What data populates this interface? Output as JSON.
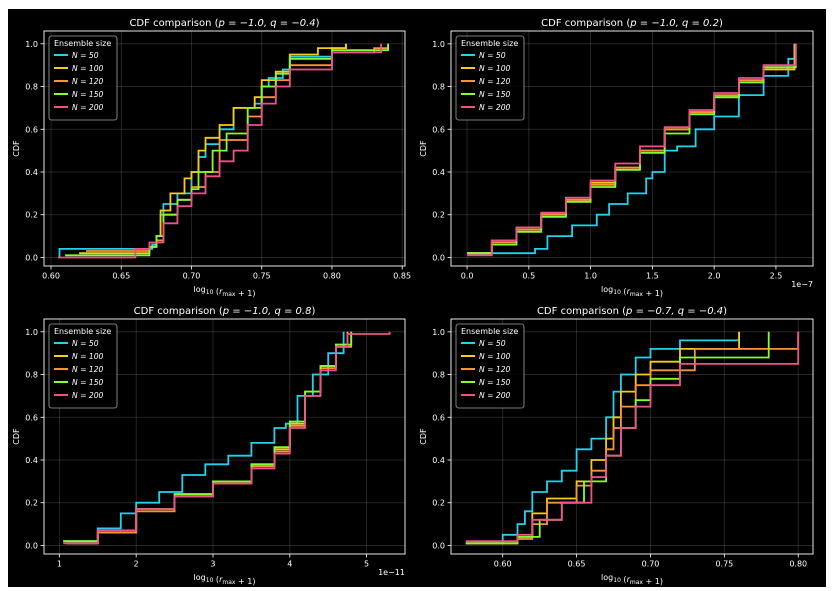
{
  "chart_data": [
    {
      "type": "line",
      "title_pre": "CDF comparison (",
      "title_pq": "p = −1.0, q = −0.4",
      "title_post": ")",
      "xlabel": "log10 (r_max + 1)",
      "ylabel": "CDF",
      "xlim": [
        0.595,
        0.852
      ],
      "ylim": [
        -0.04,
        1.06
      ],
      "xticks": [
        0.6,
        0.65,
        0.7,
        0.75,
        0.8,
        0.85
      ],
      "xtick_labels": [
        "0.60",
        "0.65",
        "0.70",
        "0.75",
        "0.80",
        "0.85"
      ],
      "yticks": [
        0.0,
        0.2,
        0.4,
        0.6,
        0.8,
        1.0
      ],
      "ytick_labels": [
        "0.0",
        "0.2",
        "0.4",
        "0.6",
        "0.8",
        "1.0"
      ],
      "offset_label": "",
      "legend_title": "Ensemble size",
      "series": [
        {
          "name": "N = 50",
          "color": "#22d3ee",
          "x": [
            0.606,
            0.606,
            0.672,
            0.675,
            0.678,
            0.68,
            0.69,
            0.7,
            0.705,
            0.71,
            0.72,
            0.73,
            0.745,
            0.75,
            0.755,
            0.765,
            0.77,
            0.8,
            0.81
          ],
          "y": [
            0.0,
            0.04,
            0.06,
            0.1,
            0.2,
            0.25,
            0.3,
            0.4,
            0.47,
            0.53,
            0.6,
            0.7,
            0.72,
            0.8,
            0.84,
            0.88,
            0.94,
            0.98,
            1.0
          ]
        },
        {
          "name": "N = 100",
          "color": "#facc15",
          "x": [
            0.62,
            0.67,
            0.675,
            0.678,
            0.685,
            0.695,
            0.7,
            0.705,
            0.71,
            0.72,
            0.73,
            0.745,
            0.75,
            0.76,
            0.77,
            0.79,
            0.81
          ],
          "y": [
            0.02,
            0.05,
            0.1,
            0.22,
            0.3,
            0.37,
            0.4,
            0.5,
            0.56,
            0.62,
            0.7,
            0.75,
            0.83,
            0.87,
            0.95,
            0.98,
            1.0
          ]
        },
        {
          "name": "N = 120",
          "color": "#fb923c",
          "x": [
            0.625,
            0.67,
            0.675,
            0.68,
            0.69,
            0.7,
            0.71,
            0.72,
            0.74,
            0.75,
            0.76,
            0.77,
            0.8,
            0.83,
            0.84
          ],
          "y": [
            0.03,
            0.05,
            0.08,
            0.2,
            0.27,
            0.33,
            0.4,
            0.55,
            0.66,
            0.75,
            0.83,
            0.9,
            0.96,
            0.98,
            1.0
          ]
        },
        {
          "name": "N = 150",
          "color": "#84ff2e",
          "x": [
            0.61,
            0.67,
            0.675,
            0.68,
            0.69,
            0.7,
            0.705,
            0.715,
            0.725,
            0.74,
            0.75,
            0.76,
            0.77,
            0.8,
            0.84
          ],
          "y": [
            0.01,
            0.05,
            0.1,
            0.2,
            0.27,
            0.32,
            0.4,
            0.5,
            0.58,
            0.7,
            0.8,
            0.86,
            0.93,
            0.97,
            1.0
          ]
        },
        {
          "name": "N = 200",
          "color": "#f0508c",
          "x": [
            0.605,
            0.66,
            0.67,
            0.68,
            0.69,
            0.7,
            0.71,
            0.72,
            0.73,
            0.74,
            0.75,
            0.76,
            0.77,
            0.8,
            0.835
          ],
          "y": [
            0.0,
            0.04,
            0.07,
            0.16,
            0.24,
            0.3,
            0.38,
            0.45,
            0.5,
            0.62,
            0.72,
            0.8,
            0.88,
            0.96,
            1.0
          ]
        }
      ]
    },
    {
      "type": "line",
      "title_pre": "CDF comparison (",
      "title_pq": "p = −1.0, q = 0.2",
      "title_post": ")",
      "xlabel": "log10 (r_max + 1)",
      "ylabel": "CDF",
      "xlim": [
        -0.13,
        2.8
      ],
      "ylim": [
        -0.04,
        1.06
      ],
      "xticks": [
        0.0,
        0.5,
        1.0,
        1.5,
        2.0,
        2.5
      ],
      "xtick_labels": [
        "0.0",
        "0.5",
        "1.0",
        "1.5",
        "2.0",
        "2.5"
      ],
      "yticks": [
        0.0,
        0.2,
        0.4,
        0.6,
        0.8,
        1.0
      ],
      "ytick_labels": [
        "0.0",
        "0.2",
        "0.4",
        "0.6",
        "0.8",
        "1.0"
      ],
      "offset_label": "1e−7",
      "legend_title": "Ensemble size",
      "series": [
        {
          "name": "N = 50",
          "color": "#22d3ee",
          "x": [
            0.0,
            0.55,
            0.65,
            0.85,
            1.05,
            1.15,
            1.3,
            1.45,
            1.5,
            1.6,
            1.7,
            1.85,
            2.0,
            2.2,
            2.4,
            2.6,
            2.65
          ],
          "y": [
            0.02,
            0.04,
            0.1,
            0.15,
            0.2,
            0.25,
            0.3,
            0.37,
            0.4,
            0.5,
            0.52,
            0.6,
            0.66,
            0.76,
            0.85,
            0.93,
            1.0
          ]
        },
        {
          "name": "N = 100",
          "color": "#facc15",
          "x": [
            0.0,
            0.2,
            0.4,
            0.6,
            0.8,
            1.0,
            1.2,
            1.4,
            1.6,
            1.8,
            2.0,
            2.2,
            2.4,
            2.65
          ],
          "y": [
            0.02,
            0.08,
            0.14,
            0.2,
            0.27,
            0.35,
            0.42,
            0.5,
            0.6,
            0.68,
            0.75,
            0.82,
            0.88,
            1.0
          ]
        },
        {
          "name": "N = 120",
          "color": "#fb923c",
          "x": [
            0.0,
            0.2,
            0.4,
            0.6,
            0.8,
            1.0,
            1.2,
            1.4,
            1.6,
            1.8,
            2.0,
            2.2,
            2.4,
            2.66
          ],
          "y": [
            0.02,
            0.07,
            0.13,
            0.2,
            0.27,
            0.34,
            0.42,
            0.5,
            0.6,
            0.68,
            0.76,
            0.83,
            0.89,
            1.0
          ]
        },
        {
          "name": "N = 150",
          "color": "#84ff2e",
          "x": [
            0.0,
            0.2,
            0.4,
            0.6,
            0.8,
            1.0,
            1.2,
            1.4,
            1.6,
            1.8,
            2.0,
            2.2,
            2.4,
            2.66
          ],
          "y": [
            0.02,
            0.06,
            0.12,
            0.19,
            0.26,
            0.33,
            0.41,
            0.49,
            0.58,
            0.67,
            0.75,
            0.82,
            0.89,
            1.0
          ]
        },
        {
          "name": "N = 200",
          "color": "#f0508c",
          "x": [
            0.0,
            0.2,
            0.4,
            0.6,
            0.8,
            1.0,
            1.2,
            1.4,
            1.6,
            1.8,
            2.0,
            2.2,
            2.4,
            2.66
          ],
          "y": [
            0.01,
            0.08,
            0.14,
            0.21,
            0.28,
            0.36,
            0.44,
            0.52,
            0.61,
            0.69,
            0.77,
            0.84,
            0.9,
            1.0
          ]
        }
      ]
    },
    {
      "type": "line",
      "title_pre": "CDF comparison (",
      "title_pq": "p = −1.0, q = 0.8",
      "title_post": ")",
      "xlabel": "log10 (r_max + 1)",
      "ylabel": "CDF",
      "xlim": [
        0.8,
        5.5
      ],
      "ylim": [
        -0.04,
        1.06
      ],
      "xticks": [
        1,
        2,
        3,
        4,
        5
      ],
      "xtick_labels": [
        "1",
        "2",
        "3",
        "4",
        "5"
      ],
      "yticks": [
        0.0,
        0.2,
        0.4,
        0.6,
        0.8,
        1.0
      ],
      "ytick_labels": [
        "0.0",
        "0.2",
        "0.4",
        "0.6",
        "0.8",
        "1.0"
      ],
      "offset_label": "1e−11",
      "legend_title": "Ensemble size",
      "series": [
        {
          "name": "N = 50",
          "color": "#22d3ee",
          "x": [
            1.05,
            1.5,
            1.8,
            2.0,
            2.3,
            2.6,
            2.9,
            3.2,
            3.5,
            3.8,
            3.95,
            4.1,
            4.3,
            4.5,
            4.7
          ],
          "y": [
            0.02,
            0.08,
            0.15,
            0.2,
            0.25,
            0.33,
            0.38,
            0.42,
            0.48,
            0.55,
            0.57,
            0.7,
            0.8,
            0.9,
            1.0
          ]
        },
        {
          "name": "N = 100",
          "color": "#facc15",
          "x": [
            1.1,
            1.5,
            2.0,
            2.5,
            3.0,
            3.5,
            3.8,
            4.0,
            4.2,
            4.4,
            4.6,
            4.75
          ],
          "y": [
            0.01,
            0.07,
            0.17,
            0.24,
            0.3,
            0.38,
            0.45,
            0.57,
            0.72,
            0.84,
            0.94,
            1.0
          ]
        },
        {
          "name": "N = 120",
          "color": "#fb923c",
          "x": [
            1.1,
            1.5,
            2.0,
            2.5,
            3.0,
            3.5,
            3.8,
            4.0,
            4.2,
            4.4,
            4.6,
            4.8
          ],
          "y": [
            0.01,
            0.06,
            0.16,
            0.23,
            0.29,
            0.37,
            0.44,
            0.56,
            0.7,
            0.83,
            0.93,
            1.0
          ]
        },
        {
          "name": "N = 150",
          "color": "#84ff2e",
          "x": [
            1.05,
            1.5,
            2.0,
            2.5,
            3.0,
            3.5,
            3.8,
            4.0,
            4.2,
            4.4,
            4.6,
            4.8
          ],
          "y": [
            0.02,
            0.07,
            0.17,
            0.24,
            0.3,
            0.38,
            0.46,
            0.58,
            0.72,
            0.84,
            0.94,
            1.0
          ]
        },
        {
          "name": "N = 200",
          "color": "#f0508c",
          "x": [
            1.05,
            1.5,
            2.0,
            2.5,
            3.0,
            3.5,
            3.8,
            4.0,
            4.2,
            4.4,
            4.6,
            4.75,
            5.3
          ],
          "y": [
            0.01,
            0.07,
            0.17,
            0.23,
            0.29,
            0.36,
            0.43,
            0.55,
            0.7,
            0.82,
            0.93,
            0.99,
            1.0
          ]
        }
      ]
    },
    {
      "type": "line",
      "title_pre": "CDF comparison (",
      "title_pq": "p = −0.7, q = −0.4",
      "title_post": ")",
      "xlabel": "log10 (r_max + 1)",
      "ylabel": "CDF",
      "xlim": [
        0.565,
        0.81
      ],
      "ylim": [
        -0.04,
        1.06
      ],
      "xticks": [
        0.6,
        0.65,
        0.7,
        0.75,
        0.8
      ],
      "xtick_labels": [
        "0.60",
        "0.65",
        "0.70",
        "0.75",
        "0.80"
      ],
      "yticks": [
        0.0,
        0.2,
        0.4,
        0.6,
        0.8,
        1.0
      ],
      "ytick_labels": [
        "0.0",
        "0.2",
        "0.4",
        "0.6",
        "0.8",
        "1.0"
      ],
      "offset_label": "",
      "legend_title": "Ensemble size",
      "series": [
        {
          "name": "N = 50",
          "color": "#22d3ee",
          "x": [
            0.575,
            0.6,
            0.61,
            0.615,
            0.62,
            0.63,
            0.64,
            0.65,
            0.66,
            0.67,
            0.675,
            0.68,
            0.69,
            0.7,
            0.72,
            0.76
          ],
          "y": [
            0.01,
            0.05,
            0.1,
            0.16,
            0.25,
            0.3,
            0.35,
            0.45,
            0.5,
            0.6,
            0.72,
            0.8,
            0.88,
            0.92,
            0.96,
            1.0
          ]
        },
        {
          "name": "N = 100",
          "color": "#facc15",
          "x": [
            0.575,
            0.61,
            0.62,
            0.63,
            0.65,
            0.66,
            0.67,
            0.675,
            0.68,
            0.69,
            0.7,
            0.72,
            0.76
          ],
          "y": [
            0.01,
            0.04,
            0.15,
            0.22,
            0.3,
            0.4,
            0.5,
            0.6,
            0.72,
            0.8,
            0.86,
            0.92,
            1.0
          ]
        },
        {
          "name": "N = 120",
          "color": "#fb923c",
          "x": [
            0.575,
            0.61,
            0.62,
            0.63,
            0.65,
            0.66,
            0.67,
            0.675,
            0.68,
            0.69,
            0.7,
            0.73,
            0.8
          ],
          "y": [
            0.01,
            0.03,
            0.1,
            0.2,
            0.28,
            0.35,
            0.45,
            0.55,
            0.65,
            0.75,
            0.82,
            0.92,
            1.0
          ]
        },
        {
          "name": "N = 150",
          "color": "#84ff2e",
          "x": [
            0.575,
            0.61,
            0.625,
            0.64,
            0.655,
            0.67,
            0.68,
            0.69,
            0.7,
            0.72,
            0.78
          ],
          "y": [
            0.01,
            0.04,
            0.12,
            0.2,
            0.3,
            0.42,
            0.55,
            0.68,
            0.78,
            0.88,
            1.0
          ]
        },
        {
          "name": "N = 200",
          "color": "#f0508c",
          "x": [
            0.575,
            0.61,
            0.62,
            0.64,
            0.66,
            0.67,
            0.68,
            0.69,
            0.7,
            0.72,
            0.8
          ],
          "y": [
            0.02,
            0.05,
            0.12,
            0.2,
            0.32,
            0.42,
            0.55,
            0.65,
            0.75,
            0.85,
            1.0
          ]
        }
      ]
    }
  ]
}
